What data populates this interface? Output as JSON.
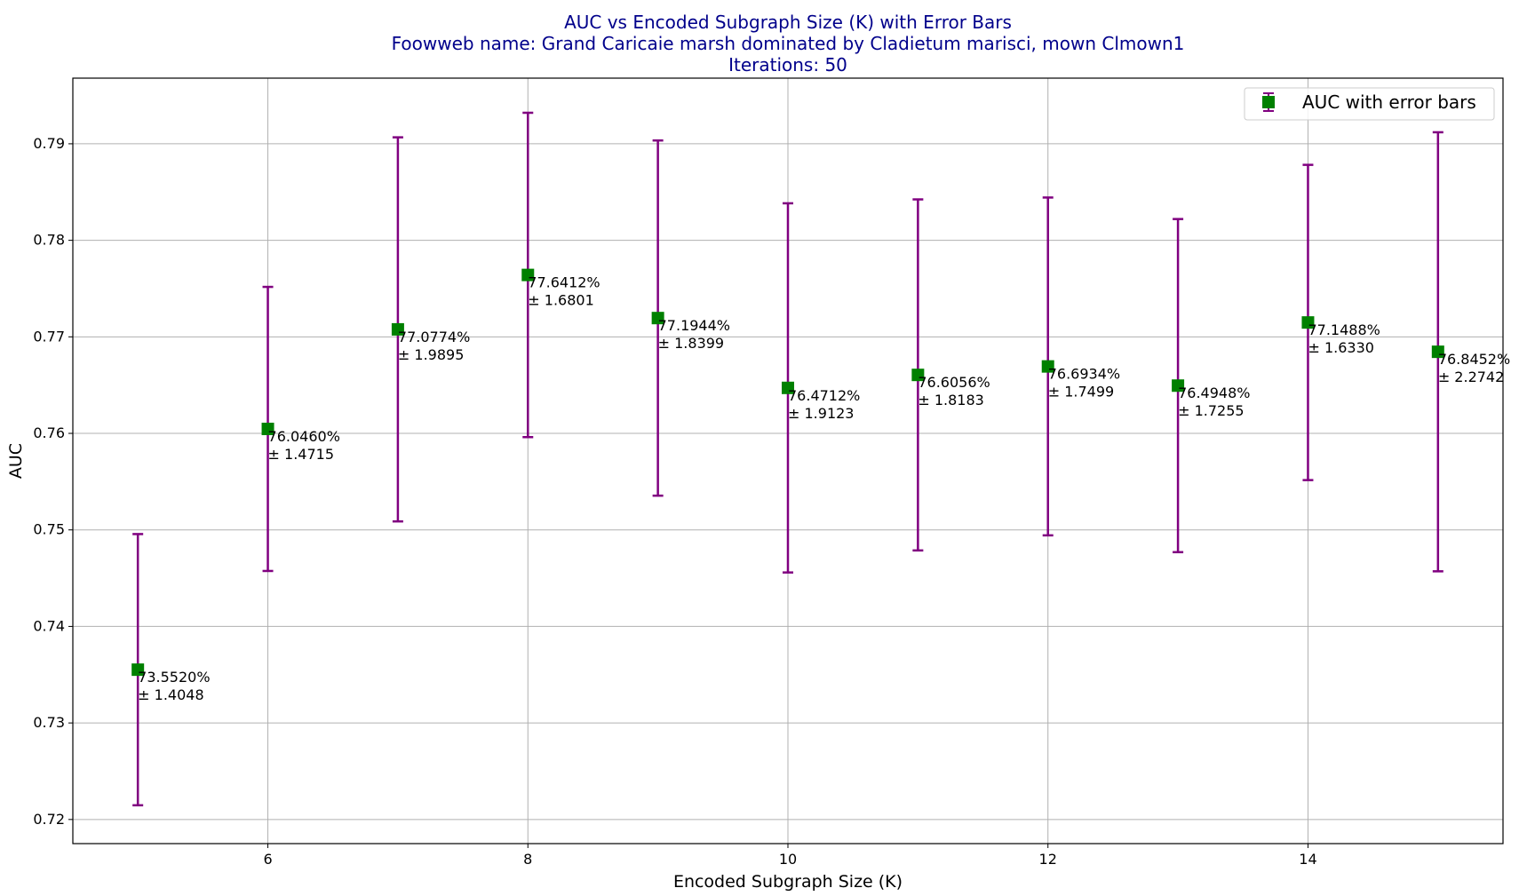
{
  "chart_data": {
    "type": "scatter",
    "title_lines": [
      "AUC vs Encoded Subgraph Size (K) with Error Bars",
      "Foowweb name: Grand Caricaie  marsh dominated by Cladietum marisci, mown  Clmown1",
      "Iterations: 50"
    ],
    "xlabel": "Encoded Subgraph Size (K)",
    "ylabel": "AUC",
    "xlim": [
      4.5,
      15.5
    ],
    "ylim": [
      0.7175,
      0.7968
    ],
    "xticks": [
      6,
      8,
      10,
      12,
      14
    ],
    "yticks": [
      0.72,
      0.73,
      0.74,
      0.75,
      0.76,
      0.77,
      0.78,
      0.79
    ],
    "x": [
      5,
      6,
      7,
      8,
      9,
      10,
      11,
      12,
      13,
      14,
      15
    ],
    "y": [
      0.73552,
      0.76046,
      0.770774,
      0.776412,
      0.771944,
      0.764712,
      0.766056,
      0.766934,
      0.764948,
      0.771488,
      0.768452
    ],
    "yerr": [
      0.014048,
      0.014715,
      0.019895,
      0.016801,
      0.018399,
      0.019123,
      0.018183,
      0.017499,
      0.017255,
      0.01633,
      0.022742
    ],
    "point_labels": [
      {
        "pct": "73.5520%",
        "err": "± 1.4048"
      },
      {
        "pct": "76.0460%",
        "err": "± 1.4715"
      },
      {
        "pct": "77.0774%",
        "err": "± 1.9895"
      },
      {
        "pct": "77.6412%",
        "err": "± 1.6801"
      },
      {
        "pct": "77.1944%",
        "err": "± 1.8399"
      },
      {
        "pct": "76.4712%",
        "err": "± 1.9123"
      },
      {
        "pct": "76.6056%",
        "err": "± 1.8183"
      },
      {
        "pct": "76.6934%",
        "err": "± 1.7499"
      },
      {
        "pct": "76.4948%",
        "err": "± 1.7255"
      },
      {
        "pct": "77.1488%",
        "err": "± 1.6330"
      },
      {
        "pct": "76.8452%",
        "err": "± 2.2742"
      }
    ],
    "legend": {
      "label": "AUC with error bars",
      "placement": "upper right"
    },
    "grid": true,
    "colors": {
      "marker": "#008000",
      "errorbar": "#800080",
      "title": "#00008b",
      "grid": "#b0b0b0"
    }
  }
}
